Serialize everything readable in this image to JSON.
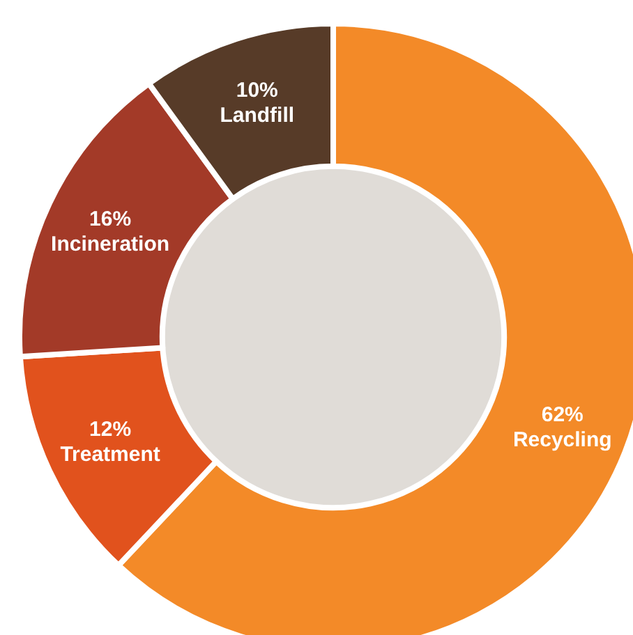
{
  "chart_data": {
    "type": "donut",
    "categories": [
      "Recycling",
      "Treatment",
      "Incineration",
      "Landfill"
    ],
    "values": [
      62,
      12,
      16,
      10
    ],
    "colors": [
      "#f38a28",
      "#e1521d",
      "#a33a28",
      "#573b28"
    ],
    "value_labels": [
      "62%",
      "12%",
      "16%",
      "10%"
    ],
    "legend": false
  }
}
